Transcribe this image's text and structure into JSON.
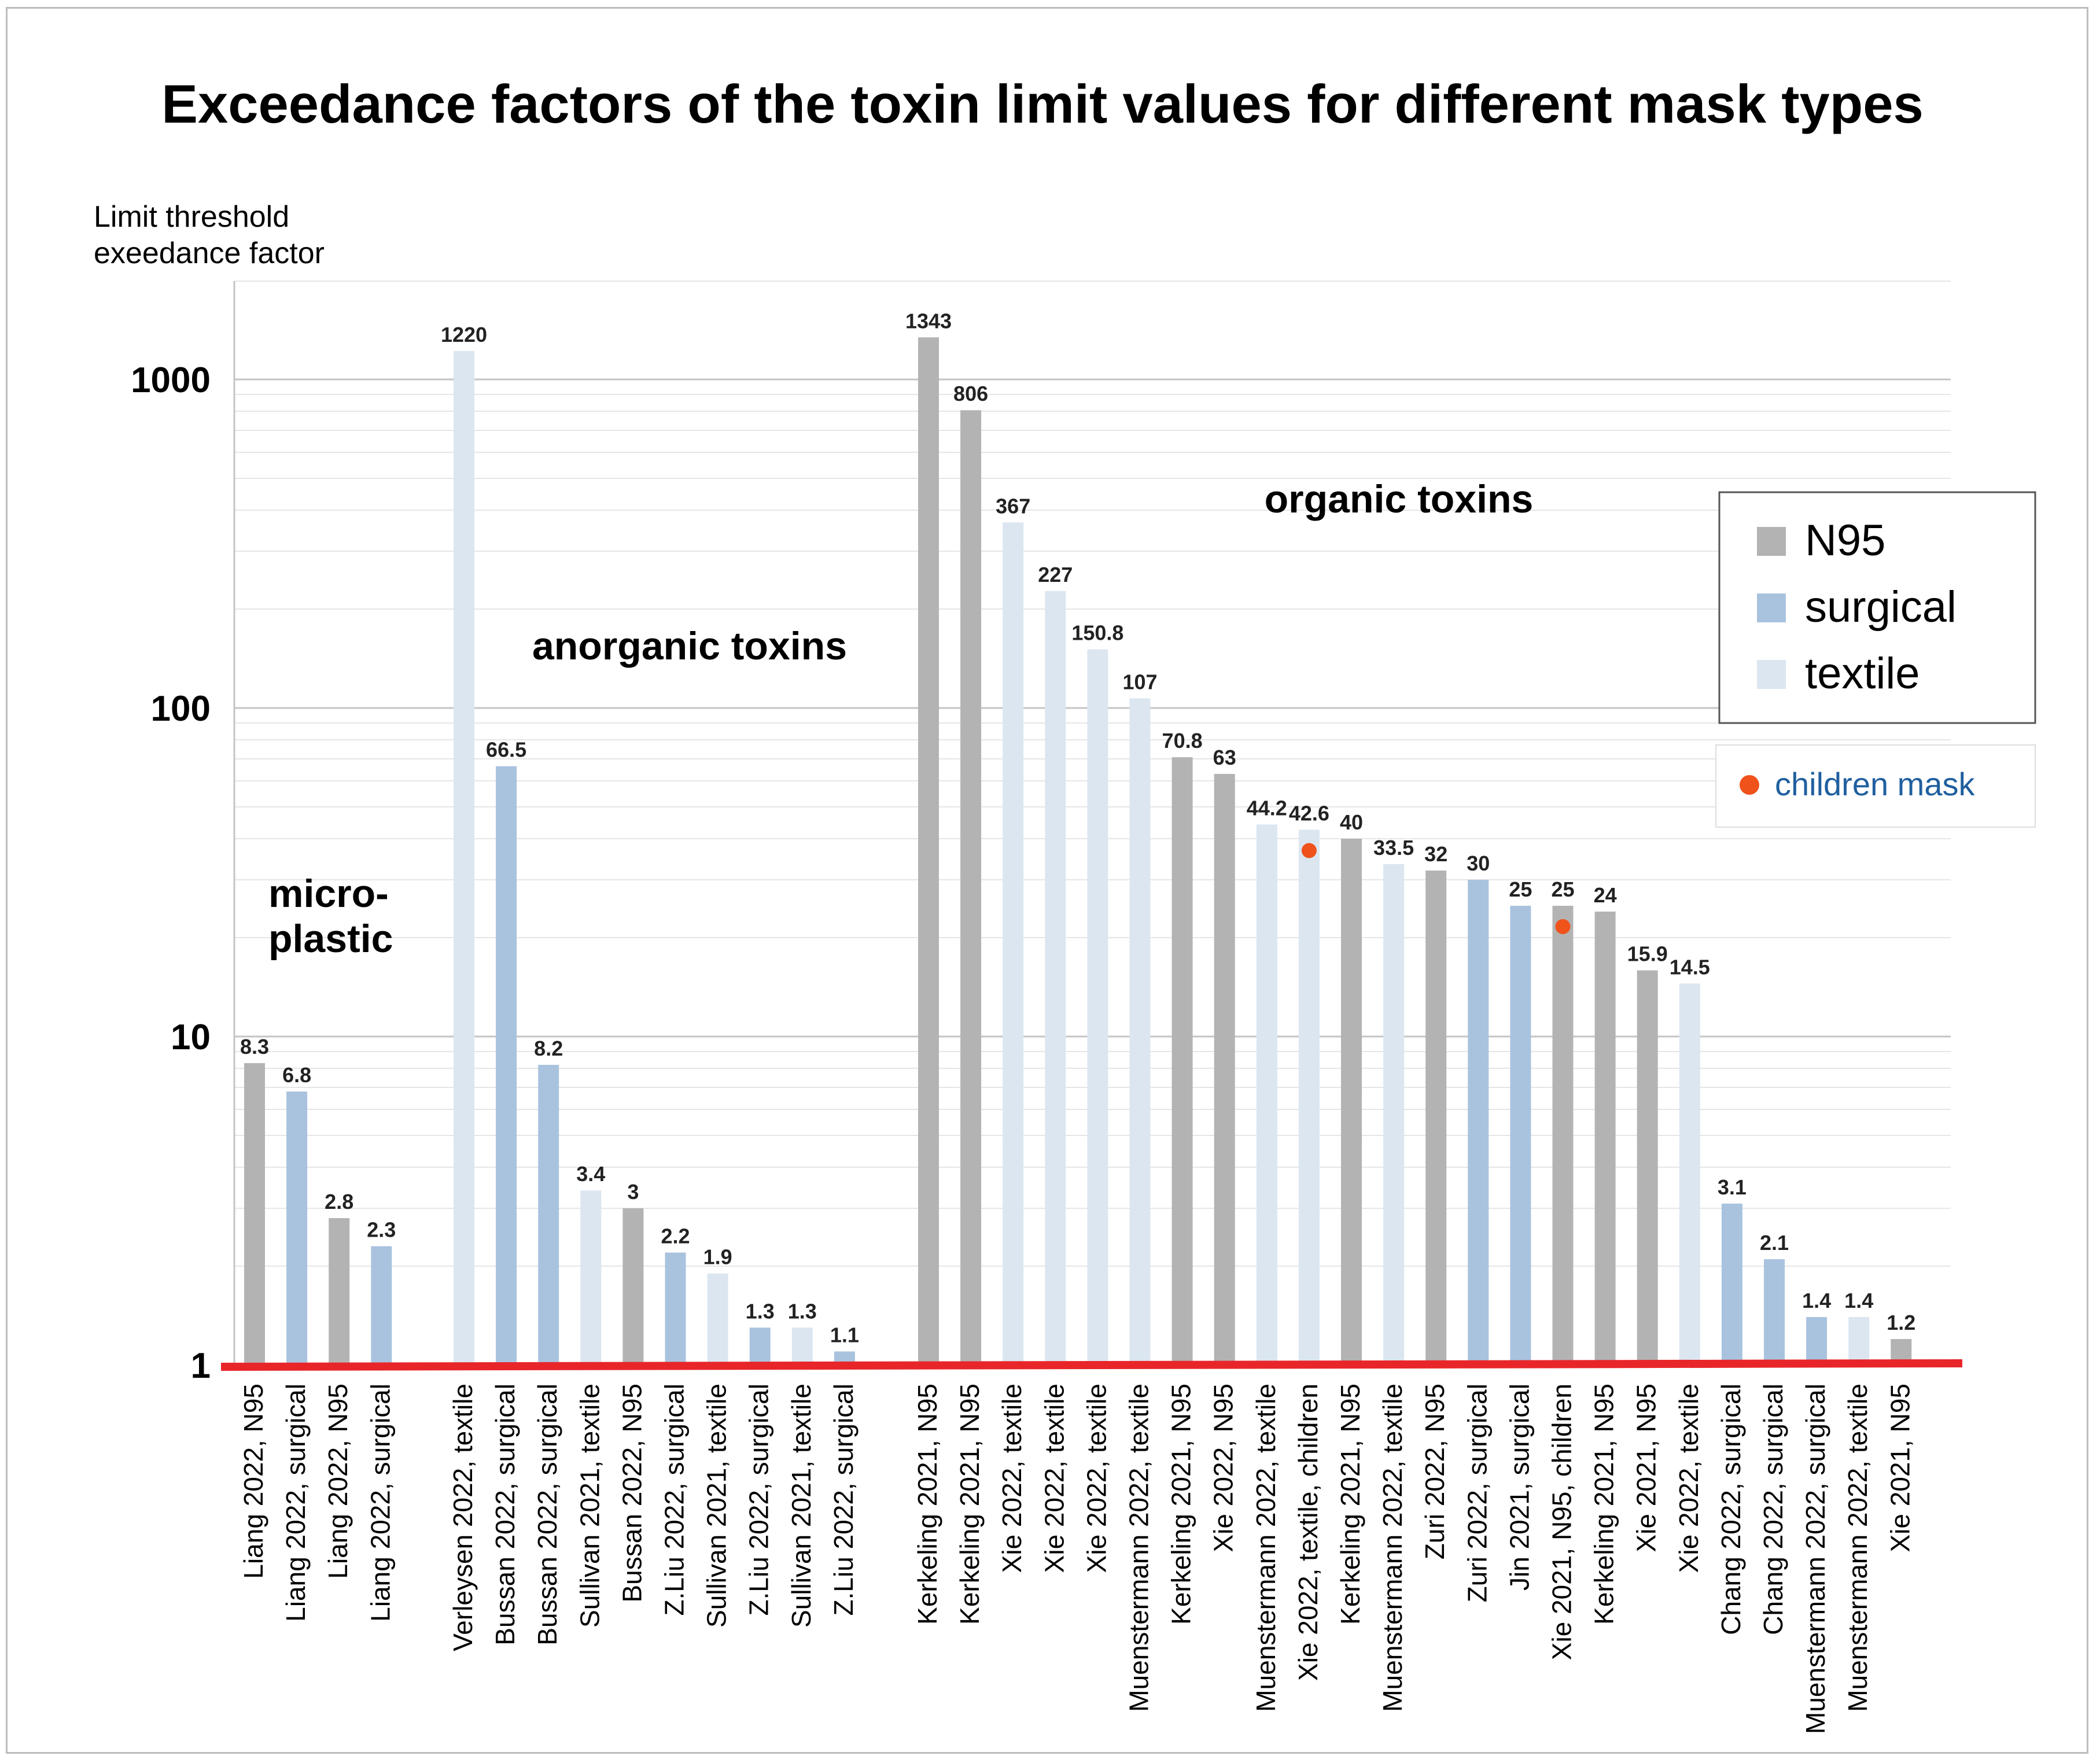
{
  "chart_data": {
    "type": "bar",
    "title": "Exceedance factors of the toxin limit values for different mask types",
    "ylabel": [
      "Limit threshold",
      "exeedance factor"
    ],
    "yscale": "log",
    "ylim": [
      1,
      1800
    ],
    "yticks": [
      1,
      10,
      100,
      1000
    ],
    "ytick_labels": [
      "1",
      "10",
      "100",
      "1000"
    ],
    "grid": true,
    "legend_position": "right",
    "baseline_color": "#e8262a",
    "legend": [
      {
        "key": "N95",
        "label": "N95",
        "color": "#b3b3b3"
      },
      {
        "key": "surgical",
        "label": "surgical",
        "color": "#a9c3de"
      },
      {
        "key": "textile",
        "label": "textile",
        "color": "#dbe6f0"
      }
    ],
    "marker_legend": {
      "label": "children mask",
      "color": "#f0521b",
      "text_color": "#1f5f9f"
    },
    "groups": [
      {
        "label_lines": [
          "micro-",
          "plastic"
        ],
        "bars": [
          {
            "category": "Liang 2022, N95",
            "value": 8.3,
            "label": "8.3",
            "type": "N95"
          },
          {
            "category": "Liang 2022, surgical",
            "value": 6.8,
            "label": "6.8",
            "type": "surgical"
          },
          {
            "category": "Liang 2022, N95",
            "value": 2.8,
            "label": "2.8",
            "type": "N95"
          },
          {
            "category": "Liang 2022, surgical",
            "value": 2.3,
            "label": "2.3",
            "type": "surgical"
          }
        ]
      },
      {
        "label_lines": [
          "anorganic toxins"
        ],
        "bars": [
          {
            "category": "Verleysen 2022, textile",
            "value": 1220,
            "label": "1220",
            "type": "textile"
          },
          {
            "category": "Bussan 2022, surgical",
            "value": 66.5,
            "label": "66.5",
            "type": "surgical"
          },
          {
            "category": "Bussan 2022, surgical",
            "value": 8.2,
            "label": "8.2",
            "type": "surgical"
          },
          {
            "category": "Sullivan 2021, textile",
            "value": 3.4,
            "label": "3.4",
            "type": "textile"
          },
          {
            "category": "Bussan 2022, N95",
            "value": 3,
            "label": "3",
            "type": "N95"
          },
          {
            "category": "Z.Liu 2022, surgical",
            "value": 2.2,
            "label": "2.2",
            "type": "surgical"
          },
          {
            "category": "Sullivan 2021, textile",
            "value": 1.9,
            "label": "1.9",
            "type": "textile"
          },
          {
            "category": "Z.Liu 2022, surgical",
            "value": 1.3,
            "label": "1.3",
            "type": "surgical"
          },
          {
            "category": "Sullivan 2021, textile",
            "value": 1.3,
            "label": "1.3",
            "type": "textile"
          },
          {
            "category": "Z.Liu 2022, surgical",
            "value": 1.1,
            "label": "1.1",
            "type": "surgical"
          }
        ]
      },
      {
        "label_lines": [
          "organic toxins"
        ],
        "bars": [
          {
            "category": "Kerkeling 2021, N95",
            "value": 1343,
            "label": "1343",
            "type": "N95"
          },
          {
            "category": "Kerkeling 2021, N95",
            "value": 806,
            "label": "806",
            "type": "N95"
          },
          {
            "category": "Xie 2022, textile",
            "value": 367,
            "label": "367",
            "type": "textile"
          },
          {
            "category": "Xie 2022, textile",
            "value": 227,
            "label": "227",
            "type": "textile"
          },
          {
            "category": "Xie 2022, textile",
            "value": 150.8,
            "label": "150.8",
            "type": "textile"
          },
          {
            "category": "Muenstermann 2022, textile",
            "value": 107,
            "label": "107",
            "type": "textile"
          },
          {
            "category": "Kerkeling 2021, N95",
            "value": 70.8,
            "label": "70.8",
            "type": "N95"
          },
          {
            "category": "Xie 2022, N95",
            "value": 63,
            "label": "63",
            "type": "N95"
          },
          {
            "category": "Muenstermann 2022, textile",
            "value": 44.2,
            "label": "44.2",
            "type": "textile"
          },
          {
            "category": "Xie 2022, textile, children",
            "value": 42.6,
            "label": "42.6",
            "type": "textile",
            "children": true
          },
          {
            "category": "Kerkeling 2021, N95",
            "value": 40,
            "label": "40",
            "type": "N95"
          },
          {
            "category": "Muenstermann 2022, textile",
            "value": 33.5,
            "label": "33.5",
            "type": "textile"
          },
          {
            "category": "Zuri 2022, N95",
            "value": 32,
            "label": "32",
            "type": "N95"
          },
          {
            "category": "Zuri 2022, surgical",
            "value": 30,
            "label": "30",
            "type": "surgical"
          },
          {
            "category": "Jin 2021, surgical",
            "value": 25,
            "label": "25",
            "type": "surgical"
          },
          {
            "category": "Xie 2021, N95, children",
            "value": 25,
            "label": "25",
            "type": "N95",
            "children": true
          },
          {
            "category": "Kerkeling 2021, N95",
            "value": 24,
            "label": "24",
            "type": "N95"
          },
          {
            "category": "Xie 2021, N95",
            "value": 15.9,
            "label": "15.9",
            "type": "N95"
          },
          {
            "category": "Xie 2022, textile",
            "value": 14.5,
            "label": "14.5",
            "type": "textile"
          },
          {
            "category": "Chang 2022, surgical",
            "value": 3.1,
            "label": "3.1",
            "type": "surgical"
          },
          {
            "category": "Chang 2022, surgical",
            "value": 2.1,
            "label": "2.1",
            "type": "surgical"
          },
          {
            "category": "Muenstermann 2022, surgical",
            "value": 1.4,
            "label": "1.4",
            "type": "surgical"
          },
          {
            "category": "Muenstermann 2022, textile",
            "value": 1.4,
            "label": "1.4",
            "type": "textile"
          },
          {
            "category": "Xie 2021, N95",
            "value": 1.2,
            "label": "1.2",
            "type": "N95"
          }
        ]
      }
    ]
  }
}
